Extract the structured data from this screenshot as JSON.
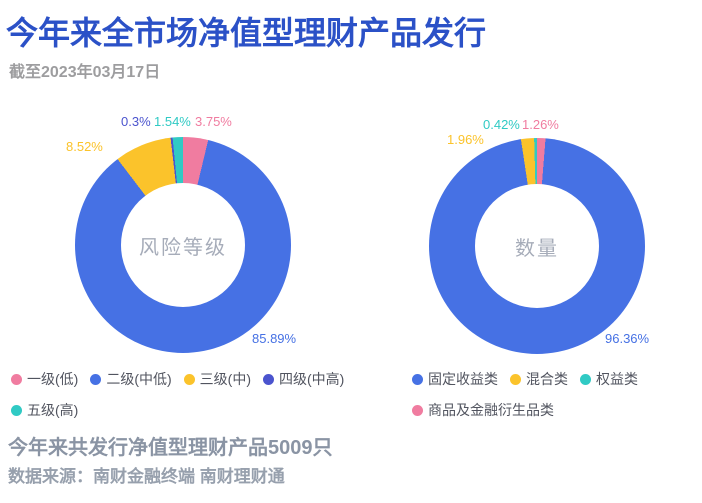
{
  "header": {
    "title": "今年来全市场净值型理财产品发行",
    "subtitle": "截至2023年03月17日"
  },
  "theme": {
    "title_color": "#2B51C7",
    "subtitle_color": "#9D9D9F",
    "center_label_color": "#A6ACB9",
    "legend_text_color": "#51545F",
    "footer_text_color": "#8A94A4",
    "background": "#FFFFFF",
    "palette": {
      "blue": "#4671E4",
      "yellow": "#FBC32B",
      "teal": "#30CAC4",
      "pink": "#F07CA0",
      "violet_blue": "#4B54CE"
    }
  },
  "chart_data": [
    {
      "type": "pie",
      "subtype": "donut",
      "center_label": "风险等级",
      "unit": "%",
      "legend_position": "bottom-left",
      "categories": [
        "一级(低)",
        "二级(中低)",
        "三级(中)",
        "四级(中高)",
        "五级(高)"
      ],
      "values": [
        3.75,
        85.89,
        8.52,
        0.3,
        1.54
      ],
      "slices": [
        {
          "label": "一级(低)",
          "value": 3.75,
          "color": "#F07CA0"
        },
        {
          "label": "二级(中低)",
          "value": 85.89,
          "color": "#4671E4"
        },
        {
          "label": "三级(中)",
          "value": 8.52,
          "color": "#FBC32B"
        },
        {
          "label": "四级(中高)",
          "value": 0.3,
          "color": "#4B54CE"
        },
        {
          "label": "五级(高)",
          "value": 1.54,
          "color": "#30CAC4"
        }
      ],
      "legend": [
        {
          "label": "一级(低)",
          "color": "#F07CA0"
        },
        {
          "label": "二级(中低)",
          "color": "#4671E4"
        },
        {
          "label": "三级(中)",
          "color": "#FBC32B"
        },
        {
          "label": "四级(中高)",
          "color": "#4B54CE"
        },
        {
          "label": "五级(高)",
          "color": "#30CAC4"
        }
      ],
      "callouts": [
        {
          "text": "0.3%",
          "color": "#4B54CE"
        },
        {
          "text": "1.54%",
          "color": "#30CAC4"
        },
        {
          "text": "3.75%",
          "color": "#F07CA0"
        },
        {
          "text": "8.52%",
          "color": "#FBC32B"
        },
        {
          "text": "85.89%",
          "color": "#4671E4"
        }
      ]
    },
    {
      "type": "pie",
      "subtype": "donut",
      "center_label": "数量",
      "unit": "%",
      "legend_position": "bottom-right",
      "categories": [
        "固定收益类",
        "混合类",
        "权益类",
        "商品及金融衍生品类"
      ],
      "values": [
        96.36,
        1.96,
        0.42,
        1.26
      ],
      "slices": [
        {
          "label": "商品及金融衍生品类",
          "value": 1.26,
          "color": "#F07CA0"
        },
        {
          "label": "固定收益类",
          "value": 96.36,
          "color": "#4671E4"
        },
        {
          "label": "混合类",
          "value": 1.96,
          "color": "#FBC32B"
        },
        {
          "label": "权益类",
          "value": 0.42,
          "color": "#30CAC4"
        }
      ],
      "legend": [
        {
          "label": "固定收益类",
          "color": "#4671E4"
        },
        {
          "label": "混合类",
          "color": "#FBC32B"
        },
        {
          "label": "权益类",
          "color": "#30CAC4"
        },
        {
          "label": "商品及金融衍生品类",
          "color": "#F07CA0"
        }
      ],
      "callouts": [
        {
          "text": "1.96%",
          "color": "#FBC32B"
        },
        {
          "text": "0.42%",
          "color": "#30CAC4"
        },
        {
          "text": "1.26%",
          "color": "#F07CA0"
        },
        {
          "text": "96.36%",
          "color": "#4671E4"
        }
      ]
    }
  ],
  "footer": {
    "summary": "今年来共发行净值型理财产品5009只",
    "source": "数据来源：南财金融终端 南财理财通"
  }
}
